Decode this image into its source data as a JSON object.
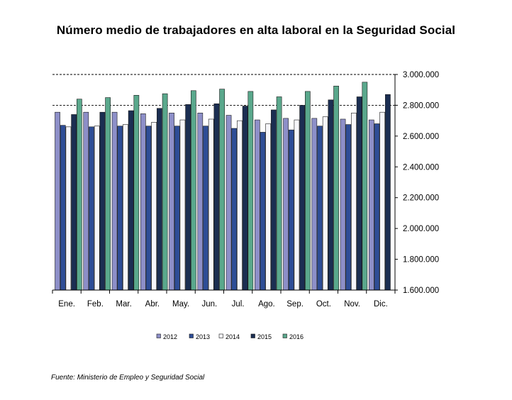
{
  "chart_data": {
    "type": "bar",
    "title": "Número medio de trabajadores en alta laboral en la Seguridad Social",
    "source": "Fuente: Ministerio de Empleo y Seguridad Social",
    "categories": [
      "Ene.",
      "Feb.",
      "Mar.",
      "Abr.",
      "May.",
      "Jun.",
      "Jul.",
      "Ago.",
      "Sep.",
      "Oct.",
      "Nov.",
      "Dic."
    ],
    "ylim": [
      1600000,
      3000000
    ],
    "yticks": [
      1600000,
      1800000,
      2000000,
      2200000,
      2400000,
      2600000,
      2800000,
      3000000
    ],
    "ytick_labels": [
      "1.600.000",
      "1.800.000",
      "2.000.000",
      "2.200.000",
      "2.400.000",
      "2.600.000",
      "2.800.000",
      "3.000.000"
    ],
    "gridlines": [
      2800000,
      3000000
    ],
    "legend_position": "bottom",
    "series": [
      {
        "name": "2012",
        "color": "#8d8fc8",
        "values": [
          2755000,
          2755000,
          2755000,
          2745000,
          2750000,
          2750000,
          2735000,
          2705000,
          2715000,
          2715000,
          2710000,
          2705000
        ]
      },
      {
        "name": "2013",
        "color": "#2e4d96",
        "values": [
          2670000,
          2660000,
          2665000,
          2665000,
          2665000,
          2665000,
          2650000,
          2625000,
          2640000,
          2665000,
          2675000,
          2680000
        ]
      },
      {
        "name": "2014",
        "color": "#f6f6fa",
        "values": [
          2660000,
          2665000,
          2675000,
          2690000,
          2705000,
          2710000,
          2700000,
          2680000,
          2705000,
          2725000,
          2750000,
          2755000
        ]
      },
      {
        "name": "2015",
        "color": "#1b2e52",
        "values": [
          2740000,
          2755000,
          2765000,
          2780000,
          2805000,
          2810000,
          2795000,
          2770000,
          2800000,
          2835000,
          2855000,
          2870000
        ]
      },
      {
        "name": "2016",
        "color": "#5aa88c",
        "values": [
          2840000,
          2850000,
          2865000,
          2875000,
          2895000,
          2905000,
          2890000,
          2855000,
          2890000,
          2925000,
          2950000,
          null
        ]
      }
    ]
  }
}
